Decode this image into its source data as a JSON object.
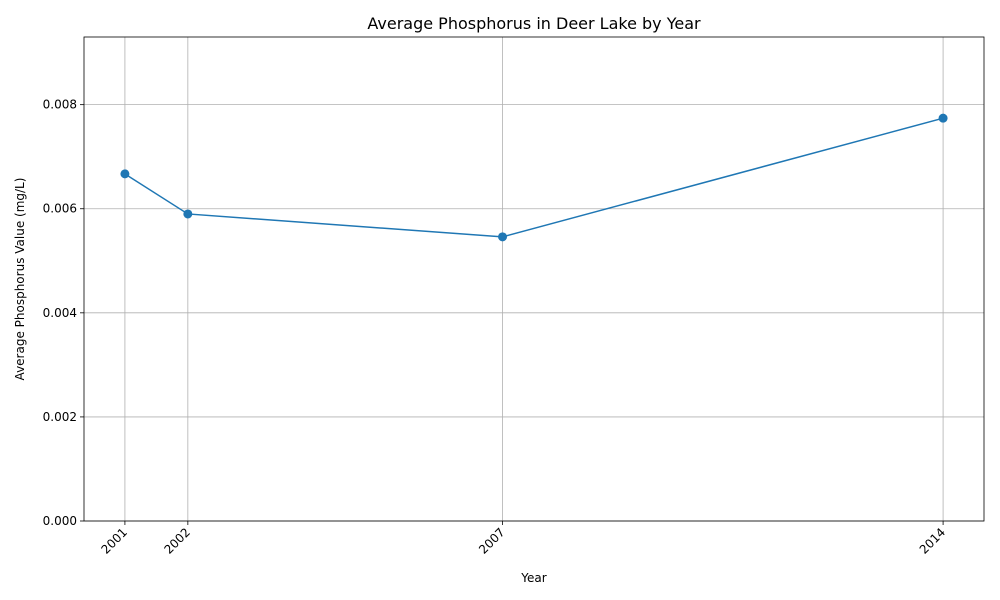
{
  "chart_data": {
    "type": "line",
    "title": "Average Phosphorus in Deer Lake by Year",
    "xlabel": "Year",
    "ylabel": "Average Phosphorus Value (mg/L)",
    "x": [
      2001,
      2002,
      2007,
      2014
    ],
    "x_tick_labels": [
      "2001",
      "2002",
      "2007",
      "2014"
    ],
    "series": [
      {
        "values": [
          0.00667,
          0.0059,
          0.00546,
          0.00774
        ],
        "color": "#1f77b4",
        "marker": "circle"
      }
    ],
    "xlim": [
      2000.35,
      2014.65
    ],
    "ylim": [
      0,
      0.0093
    ],
    "y_ticks": [
      0,
      0.002,
      0.004,
      0.006,
      0.008
    ],
    "y_tick_labels": [
      "0.000",
      "0.002",
      "0.004",
      "0.006",
      "0.008"
    ],
    "grid": true,
    "legend": "none"
  }
}
